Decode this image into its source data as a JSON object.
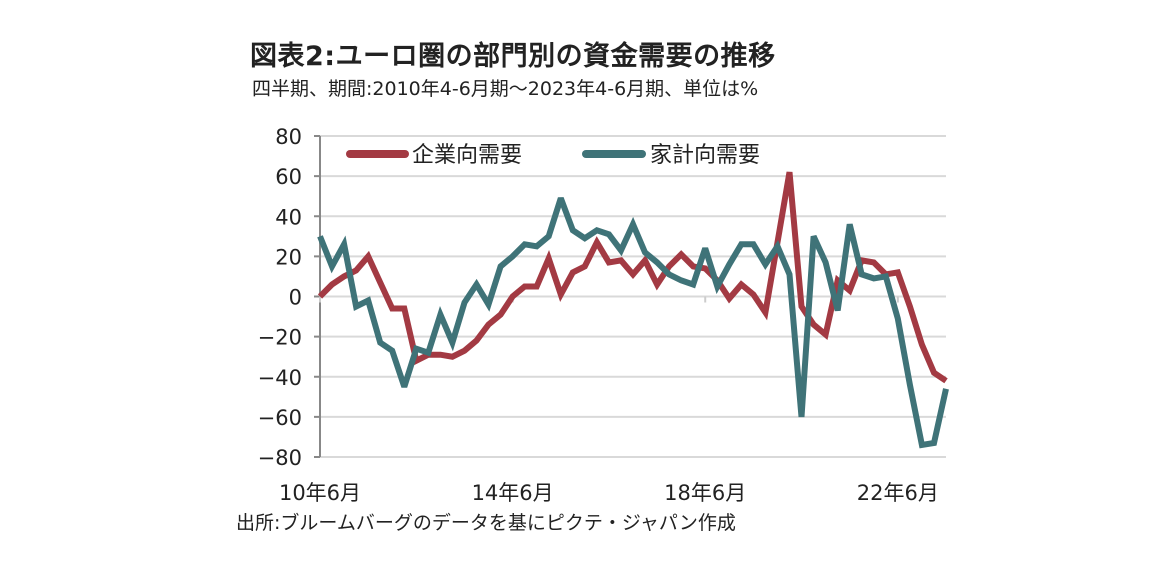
{
  "header": {
    "title": "図表2:ユーロ圏の部門別の資金需要の推移",
    "subtitle": "四半期、期間:2010年4-6月期〜2023年4-6月期、単位は%"
  },
  "footer": {
    "source": "出所:ブルームバーグのデータを基にピクテ・ジャパン作成"
  },
  "chart_data": {
    "type": "line",
    "title": "図表2:ユーロ圏の部門別の資金需要の推移",
    "subtitle": "四半期、期間:2010年4-6月期〜2023年4-6月期、単位は%",
    "xlabel": "",
    "ylabel": "",
    "ylim": [
      -80,
      80
    ],
    "yticks": [
      80,
      60,
      40,
      20,
      0,
      -20,
      -40,
      -60,
      -80
    ],
    "xticks": [
      {
        "index": 0,
        "label": "10年6月"
      },
      {
        "index": 16,
        "label": "14年6月"
      },
      {
        "index": 32,
        "label": "18年6月"
      },
      {
        "index": 48,
        "label": "22年6月"
      }
    ],
    "grid": true,
    "legend_position": "top-left",
    "x_count": 53,
    "series": [
      {
        "name": "企業向需要",
        "color": "#a33a43",
        "values": [
          0,
          6,
          10,
          13,
          20,
          7,
          -6,
          -6,
          -32,
          -29,
          -29,
          -30,
          -27,
          -22,
          -14,
          -9,
          0,
          5,
          5,
          19,
          1,
          12,
          15,
          27,
          17,
          18,
          11,
          18,
          6,
          15,
          21,
          15,
          14,
          8,
          -1,
          6,
          1,
          -8,
          27,
          62,
          -5,
          -14,
          -19,
          8,
          3,
          18,
          17,
          11,
          12,
          -5,
          -24,
          -38,
          -42
        ]
      },
      {
        "name": "家計向需要",
        "color": "#3f7378",
        "values": [
          30,
          15,
          26,
          -5,
          -2,
          -23,
          -27,
          -45,
          -26,
          -28,
          -9,
          -23,
          -3,
          6,
          -4,
          15,
          20,
          26,
          25,
          30,
          49,
          33,
          29,
          33,
          31,
          23,
          36,
          22,
          17,
          11,
          8,
          6,
          24,
          5,
          16,
          26,
          26,
          16,
          25,
          11,
          -60,
          30,
          17,
          -7,
          36,
          11,
          9,
          10,
          -11,
          -44,
          -74,
          -73,
          -46
        ]
      }
    ]
  }
}
